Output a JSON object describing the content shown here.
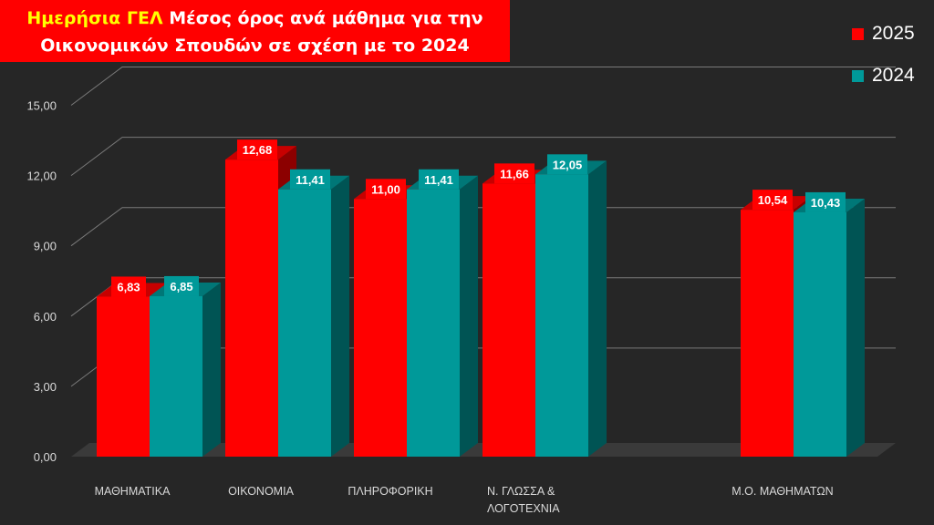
{
  "title": {
    "highlight": "Ημερήσια ΓΕΛ",
    "line1_rest": " Μέσος όρος ανά μάθημα για την",
    "line2": "Οικονομικών Σπουδών σε σχέση με το 2024"
  },
  "colors": {
    "series_2025": "#ff0000",
    "series_2024": "#009999",
    "title_highlight": "#ffff00",
    "background": "#262626"
  },
  "chart_data": {
    "type": "bar",
    "title": "Ημερήσια ΓΕΛ Μέσος όρος ανά μάθημα για την Οικονομικών Σπουδών σε σχέση με το 2024",
    "categories": [
      [
        "ΜΑΘΗΜΑΤΙΚΑ"
      ],
      [
        "ΟΙΚΟΝΟΜΙΑ"
      ],
      [
        "ΠΛΗΡΟΦΟΡΙΚΗ"
      ],
      [
        "Ν. ΓΛΩΣΣΑ &",
        "ΛΟΓΟΤΕΧΝΙΑ"
      ],
      [
        "Μ.Ο. ΜΑΘΗΜΑΤΩΝ"
      ]
    ],
    "series": [
      {
        "name": "2025",
        "values": [
          6.83,
          12.68,
          11.0,
          11.66,
          10.54
        ],
        "labels": [
          "6,83",
          "12,68",
          "11,00",
          "11,66",
          "10,54"
        ]
      },
      {
        "name": "2024",
        "values": [
          6.85,
          11.41,
          11.41,
          12.05,
          10.43
        ],
        "labels": [
          "6,85",
          "11,41",
          "11,41",
          "12,05",
          "10,43"
        ]
      }
    ],
    "ylim": [
      0,
      15
    ],
    "yticks": [
      "0,00",
      "3,00",
      "6,00",
      "9,00",
      "12,00",
      "15,00"
    ],
    "grid": true,
    "legend": "top-right"
  }
}
